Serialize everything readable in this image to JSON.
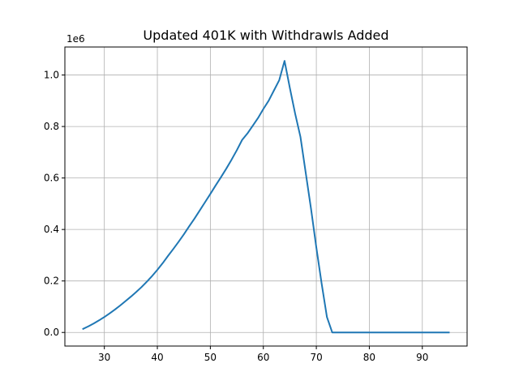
{
  "chart_data": {
    "type": "line",
    "title": "Updated 401K with Withdrawls Added",
    "xlabel": "",
    "ylabel": "",
    "y_offset_label": "1e6",
    "xlim": [
      22.55,
      98.45
    ],
    "ylim": [
      -0.0528,
      1.1088
    ],
    "x_ticks": [
      30,
      40,
      50,
      60,
      70,
      80,
      90
    ],
    "x_tick_labels": [
      "30",
      "40",
      "50",
      "60",
      "70",
      "80",
      "90"
    ],
    "y_ticks": [
      0.0,
      0.2,
      0.4,
      0.6,
      0.8,
      1.0
    ],
    "y_tick_labels": [
      "0.0",
      "0.2",
      "0.4",
      "0.6",
      "0.8",
      "1.0"
    ],
    "grid": true,
    "legend": "none",
    "series": [
      {
        "color": "#1f77b4",
        "x": [
          26,
          27,
          28,
          29,
          30,
          31,
          32,
          33,
          34,
          35,
          36,
          37,
          38,
          39,
          40,
          41,
          42,
          43,
          44,
          45,
          46,
          47,
          48,
          49,
          50,
          51,
          52,
          53,
          54,
          55,
          56,
          57,
          58,
          59,
          60,
          61,
          62,
          63,
          64,
          65,
          66,
          67,
          68,
          69,
          70,
          71,
          72,
          73,
          74,
          75,
          76,
          77,
          78,
          79,
          80,
          81,
          82,
          83,
          84,
          85,
          86,
          87,
          88,
          89,
          90,
          91,
          92,
          93,
          94,
          95
        ],
        "y": [
          0.014,
          0.024,
          0.035,
          0.047,
          0.06,
          0.074,
          0.089,
          0.105,
          0.122,
          0.139,
          0.157,
          0.176,
          0.197,
          0.219,
          0.243,
          0.269,
          0.297,
          0.324,
          0.352,
          0.381,
          0.412,
          0.442,
          0.474,
          0.506,
          0.538,
          0.571,
          0.603,
          0.636,
          0.671,
          0.708,
          0.748,
          0.773,
          0.803,
          0.833,
          0.868,
          0.9,
          0.94,
          0.98,
          1.055,
          0.95,
          0.85,
          0.76,
          0.62,
          0.48,
          0.33,
          0.19,
          0.06,
          0.0,
          0.0,
          0.0,
          0.0,
          0.0,
          0.0,
          0.0,
          0.0,
          0.0,
          0.0,
          0.0,
          0.0,
          0.0,
          0.0,
          0.0,
          0.0,
          0.0,
          0.0,
          0.0,
          0.0,
          0.0,
          0.0,
          0.0
        ]
      }
    ]
  }
}
